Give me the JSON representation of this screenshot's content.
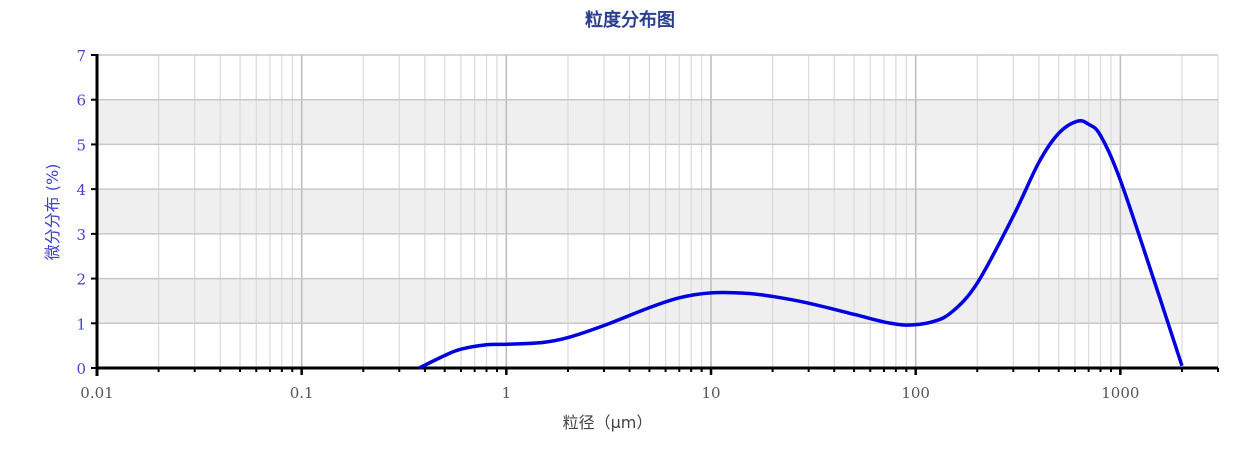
{
  "chart_data": {
    "type": "line",
    "title": "粒度分布图",
    "xlabel": "粒径（μm）",
    "ylabel": "微分分布 (%)",
    "x_scale": "log",
    "xlim": [
      0.01,
      3000
    ],
    "ylim": [
      0,
      7
    ],
    "x_ticks": [
      0.01,
      0.1,
      1,
      10,
      100,
      1000
    ],
    "x_tick_labels": [
      "0.01",
      "0.1",
      "1",
      "10",
      "100",
      "1000"
    ],
    "y_ticks": [
      0,
      1,
      2,
      3,
      4,
      5,
      6,
      7
    ],
    "y_tick_labels": [
      "0",
      "1",
      "2",
      "3",
      "4",
      "5",
      "6",
      "7"
    ],
    "grid": true,
    "shaded_bands": [
      [
        1,
        2
      ],
      [
        3,
        4
      ],
      [
        5,
        6
      ]
    ],
    "series": [
      {
        "color": "#0000e0",
        "x": [
          0.375,
          0.5,
          0.6,
          0.8,
          1,
          1.5,
          2,
          3,
          5,
          7,
          10,
          15,
          20,
          30,
          50,
          70,
          90,
          120,
          150,
          200,
          300,
          400,
          500,
          617,
          700,
          800,
          1000,
          1500,
          2000
        ],
        "y": [
          0,
          0.28,
          0.42,
          0.52,
          0.53,
          0.57,
          0.68,
          0.95,
          1.35,
          1.57,
          1.68,
          1.67,
          1.6,
          1.45,
          1.2,
          1.03,
          0.96,
          1.03,
          1.25,
          1.9,
          3.4,
          4.6,
          5.25,
          5.52,
          5.45,
          5.2,
          4.2,
          1.8,
          0.05
        ]
      }
    ]
  },
  "colors": {
    "title": "#2a3f8f",
    "ylabel": "#4040d0",
    "line": "#0000e0",
    "band": "#efefef",
    "grid": "#c8c8c8"
  }
}
